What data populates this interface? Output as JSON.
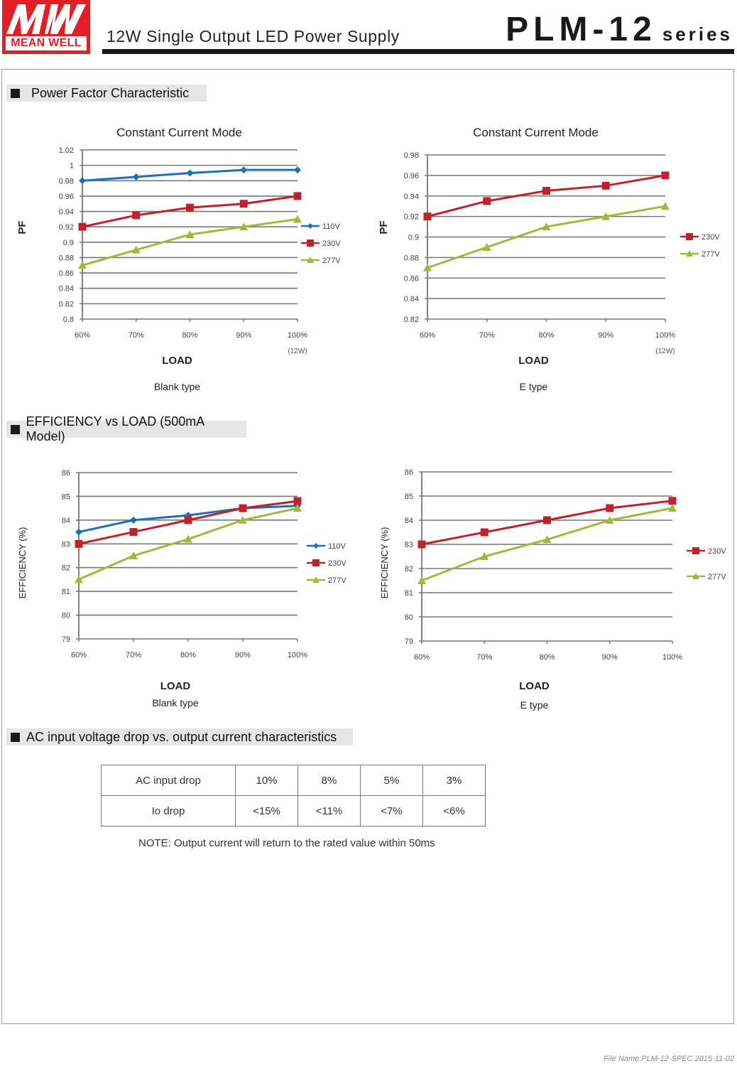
{
  "header": {
    "brand": "MEAN WELL",
    "logo_mark": "MW",
    "subtitle": "12W Single Output LED Power Supply",
    "model": "PLM-12",
    "series_label": "series"
  },
  "sections": {
    "power_factor": "Power Factor Characteristic",
    "efficiency": "EFFICIENCY vs LOAD (500mA Model)",
    "ac_drop": "AC input voltage drop vs. output current characteristics"
  },
  "colors": {
    "brand_red": "#e41e26",
    "series_110V": "#1f6fb8",
    "series_230V": "#c0222b",
    "series_277V": "#9dbb38"
  },
  "chart_data": [
    {
      "id": "pf_blank",
      "type": "line",
      "title": "Constant Current Mode",
      "caption": "Blank type",
      "xlabel": "LOAD",
      "ylabel": "PF",
      "x_note": "(12W)",
      "categories": [
        "60%",
        "70%",
        "80%",
        "90%",
        "100%"
      ],
      "ylim": [
        0.8,
        1.02
      ],
      "yticks": [
        0.8,
        0.82,
        0.84,
        0.86,
        0.88,
        0.9,
        0.92,
        0.94,
        0.96,
        0.98,
        1,
        1.02
      ],
      "ytick_labels": [
        "0.8",
        "0.82",
        "0.84",
        "0.86",
        "0.88",
        "0.9",
        "0.92",
        "0.94",
        "0.96",
        "0.98",
        "1",
        "1.02"
      ],
      "grid": true,
      "legend": "right",
      "series": [
        {
          "name": "110V",
          "marker": "diamond",
          "values": [
            0.98,
            0.985,
            0.99,
            0.994,
            0.994
          ]
        },
        {
          "name": "230V",
          "marker": "square",
          "values": [
            0.92,
            0.935,
            0.945,
            0.95,
            0.96
          ]
        },
        {
          "name": "277V",
          "marker": "triangle",
          "values": [
            0.87,
            0.89,
            0.91,
            0.92,
            0.93
          ]
        }
      ]
    },
    {
      "id": "pf_e",
      "type": "line",
      "title": "Constant Current Mode",
      "caption": "E type",
      "xlabel": "LOAD",
      "ylabel": "PF",
      "x_note": "(12W)",
      "categories": [
        "60%",
        "70%",
        "80%",
        "90%",
        "100%"
      ],
      "ylim": [
        0.82,
        0.98
      ],
      "yticks": [
        0.82,
        0.84,
        0.86,
        0.88,
        0.9,
        0.92,
        0.94,
        0.96,
        0.98
      ],
      "ytick_labels": [
        "0.82",
        "0.84",
        "0.86",
        "0.88",
        "0.9",
        "0.92",
        "0.94",
        "0.96",
        "0.98"
      ],
      "grid": true,
      "legend": "right",
      "series": [
        {
          "name": "230V",
          "marker": "square",
          "values": [
            0.92,
            0.935,
            0.945,
            0.95,
            0.96
          ]
        },
        {
          "name": "277V",
          "marker": "triangle",
          "values": [
            0.87,
            0.89,
            0.91,
            0.92,
            0.93
          ]
        }
      ]
    },
    {
      "id": "eff_blank",
      "type": "line",
      "title": "",
      "caption": "Blank type",
      "xlabel": "LOAD",
      "ylabel": "EFFICIENCY (%)",
      "x_note": "",
      "categories": [
        "60%",
        "70%",
        "80%",
        "90%",
        "100%"
      ],
      "ylim": [
        79,
        86
      ],
      "yticks": [
        79,
        80,
        81,
        82,
        83,
        84,
        85,
        86
      ],
      "ytick_labels": [
        "79",
        "80",
        "81",
        "82",
        "83",
        "84",
        "85",
        "86"
      ],
      "grid": true,
      "legend": "right",
      "series": [
        {
          "name": "110V",
          "marker": "diamond",
          "values": [
            83.5,
            84.0,
            84.2,
            84.5,
            84.6
          ]
        },
        {
          "name": "230V",
          "marker": "square",
          "values": [
            83.0,
            83.5,
            84.0,
            84.5,
            84.8
          ]
        },
        {
          "name": "277V",
          "marker": "triangle",
          "values": [
            81.5,
            82.5,
            83.2,
            84.0,
            84.5
          ]
        }
      ]
    },
    {
      "id": "eff_e",
      "type": "line",
      "title": "",
      "caption": "E type",
      "xlabel": "LOAD",
      "ylabel": "EFFICIENCY (%)",
      "x_note": "",
      "categories": [
        "60%",
        "70%",
        "80%",
        "90%",
        "100%"
      ],
      "ylim": [
        79,
        86
      ],
      "yticks": [
        79,
        80,
        81,
        82,
        83,
        84,
        85,
        86
      ],
      "ytick_labels": [
        "79",
        "80",
        "81",
        "82",
        "83",
        "84",
        "85",
        "86"
      ],
      "grid": true,
      "legend": "right",
      "series": [
        {
          "name": "230V",
          "marker": "square",
          "values": [
            83.0,
            83.5,
            84.0,
            84.5,
            84.8
          ]
        },
        {
          "name": "277V",
          "marker": "triangle",
          "values": [
            81.5,
            82.5,
            83.2,
            84.0,
            84.5
          ]
        }
      ]
    }
  ],
  "ac_table": {
    "rows": [
      {
        "label": "AC input drop",
        "values": [
          "10%",
          "8%",
          "5%",
          "3%"
        ]
      },
      {
        "label": "Io drop",
        "values": [
          "<15%",
          "<11%",
          "<7%",
          "<6%"
        ]
      }
    ],
    "note": "NOTE: Output current will return to the rated value within 50ms"
  },
  "footer": {
    "file_name": "File Name:PLM-12-SPEC   2015-11-02"
  }
}
